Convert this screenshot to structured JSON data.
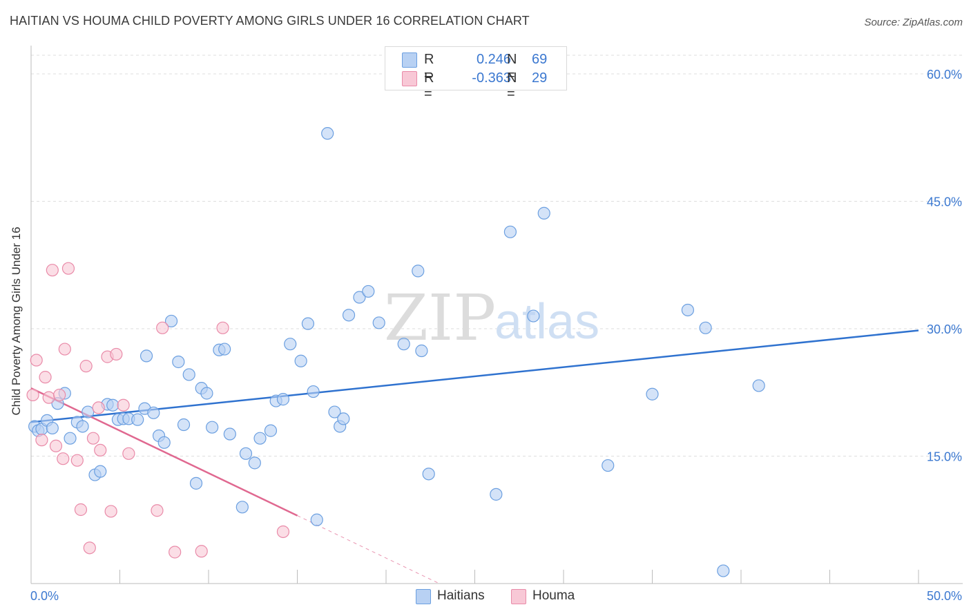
{
  "title": "HAITIAN VS HOUMA CHILD POVERTY AMONG GIRLS UNDER 16 CORRELATION CHART",
  "source": "Source: ZipAtlas.com",
  "watermark": {
    "zip": "ZIP",
    "atlas": "atlas"
  },
  "legend": {
    "r_label": "R =",
    "n_label": "N =",
    "rows": [
      {
        "r": "0.246",
        "n": "69",
        "color": "#b8d1f3",
        "border": "#6b9fe0"
      },
      {
        "r": "-0.363",
        "n": "29",
        "color": "#f8c8d6",
        "border": "#e98aa8"
      }
    ]
  },
  "bottom_legend": [
    "Haitians",
    "Houma"
  ],
  "chart_data": {
    "type": "scatter",
    "title": "HAITIAN VS HOUMA CHILD POVERTY AMONG GIRLS UNDER 16 CORRELATION CHART",
    "xlabel": "",
    "ylabel": "Child Poverty Among Girls Under 16",
    "xlim": [
      0,
      50
    ],
    "ylim": [
      0,
      60
    ],
    "x_tick_labels": [
      "0.0%",
      "50.0%"
    ],
    "y_ticks": [
      15,
      30,
      45,
      60
    ],
    "y_tick_labels": [
      "15.0%",
      "30.0%",
      "45.0%",
      "60.0%"
    ],
    "grid": true,
    "legend_position": "top-center",
    "series": [
      {
        "name": "Haitians",
        "color": "#6b9fe0",
        "fill": "#b8d1f3",
        "line_color": "#2f72cf",
        "trend": {
          "x": [
            0,
            50
          ],
          "y": [
            19.0,
            29.8
          ]
        },
        "points": [
          [
            0.2,
            18.5
          ],
          [
            0.4,
            18.0
          ],
          [
            0.6,
            18.2
          ],
          [
            0.9,
            19.2
          ],
          [
            1.2,
            18.3
          ],
          [
            1.5,
            21.2
          ],
          [
            1.9,
            22.4
          ],
          [
            2.2,
            17.1
          ],
          [
            2.6,
            19.0
          ],
          [
            2.9,
            18.5
          ],
          [
            3.2,
            20.2
          ],
          [
            3.6,
            12.8
          ],
          [
            3.9,
            13.2
          ],
          [
            4.3,
            21.1
          ],
          [
            4.6,
            21.0
          ],
          [
            4.9,
            19.3
          ],
          [
            5.2,
            19.4
          ],
          [
            5.5,
            19.4
          ],
          [
            6.0,
            19.3
          ],
          [
            6.4,
            20.6
          ],
          [
            6.5,
            26.8
          ],
          [
            6.9,
            20.1
          ],
          [
            7.2,
            17.4
          ],
          [
            7.5,
            16.6
          ],
          [
            7.9,
            30.9
          ],
          [
            8.3,
            26.1
          ],
          [
            8.6,
            18.7
          ],
          [
            8.9,
            24.6
          ],
          [
            9.3,
            11.8
          ],
          [
            9.6,
            23.0
          ],
          [
            9.9,
            22.4
          ],
          [
            10.2,
            18.4
          ],
          [
            10.6,
            27.5
          ],
          [
            10.9,
            27.6
          ],
          [
            11.2,
            17.6
          ],
          [
            11.9,
            9.0
          ],
          [
            12.1,
            15.3
          ],
          [
            12.6,
            14.2
          ],
          [
            12.9,
            17.1
          ],
          [
            13.5,
            18.0
          ],
          [
            13.8,
            21.5
          ],
          [
            14.2,
            21.7
          ],
          [
            14.6,
            28.2
          ],
          [
            15.2,
            26.2
          ],
          [
            15.6,
            30.6
          ],
          [
            15.9,
            22.6
          ],
          [
            16.1,
            7.5
          ],
          [
            16.7,
            53.0
          ],
          [
            17.1,
            20.2
          ],
          [
            17.4,
            18.5
          ],
          [
            17.6,
            19.4
          ],
          [
            17.9,
            31.6
          ],
          [
            18.5,
            33.7
          ],
          [
            19.0,
            34.4
          ],
          [
            19.6,
            30.7
          ],
          [
            21.0,
            28.2
          ],
          [
            21.8,
            36.8
          ],
          [
            22.0,
            27.4
          ],
          [
            22.4,
            12.9
          ],
          [
            26.2,
            10.5
          ],
          [
            27.0,
            41.4
          ],
          [
            28.3,
            31.5
          ],
          [
            28.9,
            43.6
          ],
          [
            32.5,
            13.9
          ],
          [
            35.0,
            22.3
          ],
          [
            37.0,
            32.2
          ],
          [
            38.0,
            30.1
          ],
          [
            39.0,
            1.5
          ],
          [
            41.0,
            23.3
          ]
        ]
      },
      {
        "name": "Houma",
        "color": "#e98aa8",
        "fill": "#f8c8d6",
        "line_color": "#e06890",
        "trend": {
          "x": [
            0,
            15
          ],
          "y": [
            23.0,
            8.0
          ]
        },
        "trend_dashed": {
          "x": [
            15,
            23
          ],
          "y": [
            8.0,
            0.0
          ]
        },
        "points": [
          [
            0.1,
            22.2
          ],
          [
            0.3,
            26.3
          ],
          [
            0.6,
            16.9
          ],
          [
            0.8,
            24.3
          ],
          [
            1.0,
            21.9
          ],
          [
            1.2,
            36.9
          ],
          [
            1.4,
            16.2
          ],
          [
            1.6,
            22.2
          ],
          [
            1.8,
            14.7
          ],
          [
            1.9,
            27.6
          ],
          [
            2.1,
            37.1
          ],
          [
            2.6,
            14.5
          ],
          [
            2.8,
            8.7
          ],
          [
            3.1,
            25.6
          ],
          [
            3.3,
            4.2
          ],
          [
            3.5,
            17.1
          ],
          [
            3.8,
            20.7
          ],
          [
            3.9,
            15.7
          ],
          [
            4.3,
            26.7
          ],
          [
            4.5,
            8.5
          ],
          [
            4.8,
            27.0
          ],
          [
            5.2,
            21.0
          ],
          [
            5.5,
            15.3
          ],
          [
            7.1,
            8.6
          ],
          [
            7.4,
            30.1
          ],
          [
            8.1,
            3.7
          ],
          [
            9.6,
            3.8
          ],
          [
            10.8,
            30.1
          ],
          [
            14.2,
            6.1
          ]
        ]
      }
    ]
  }
}
